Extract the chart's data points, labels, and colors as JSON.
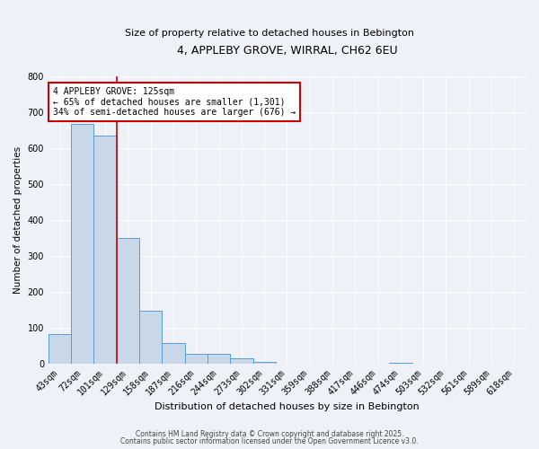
{
  "title": "4, APPLEBY GROVE, WIRRAL, CH62 6EU",
  "subtitle": "Size of property relative to detached houses in Bebington",
  "xlabel": "Distribution of detached houses by size in Bebington",
  "ylabel": "Number of detached properties",
  "bin_labels": [
    "43sqm",
    "72sqm",
    "101sqm",
    "129sqm",
    "158sqm",
    "187sqm",
    "216sqm",
    "244sqm",
    "273sqm",
    "302sqm",
    "331sqm",
    "359sqm",
    "388sqm",
    "417sqm",
    "446sqm",
    "474sqm",
    "503sqm",
    "532sqm",
    "561sqm",
    "589sqm",
    "618sqm"
  ],
  "bar_values": [
    83,
    667,
    635,
    350,
    148,
    57,
    28,
    27,
    16,
    5,
    0,
    0,
    0,
    0,
    0,
    2,
    0,
    0,
    0,
    0,
    0
  ],
  "bar_color": "#c8d8e8",
  "bar_edge_color": "#5b9bd5",
  "vline_x_index": 2.5,
  "vline_color": "#cc0000",
  "annotation_title": "4 APPLEBY GROVE: 125sqm",
  "annotation_line1": "← 65% of detached houses are smaller (1,301)",
  "annotation_line2": "34% of semi-detached houses are larger (676) →",
  "annotation_box_color": "#ffffff",
  "annotation_box_edge": "#cc0000",
  "ylim": [
    0,
    800
  ],
  "yticks": [
    0,
    100,
    200,
    300,
    400,
    500,
    600,
    700,
    800
  ],
  "footer1": "Contains HM Land Registry data © Crown copyright and database right 2025.",
  "footer2": "Contains public sector information licensed under the Open Government Licence v3.0.",
  "background_color": "#eef2f8",
  "grid_color": "#ffffff",
  "title_fontsize": 9,
  "subtitle_fontsize": 8,
  "xlabel_fontsize": 8,
  "ylabel_fontsize": 7.5,
  "tick_fontsize": 7,
  "annotation_fontsize": 7,
  "footer_fontsize": 5.5
}
